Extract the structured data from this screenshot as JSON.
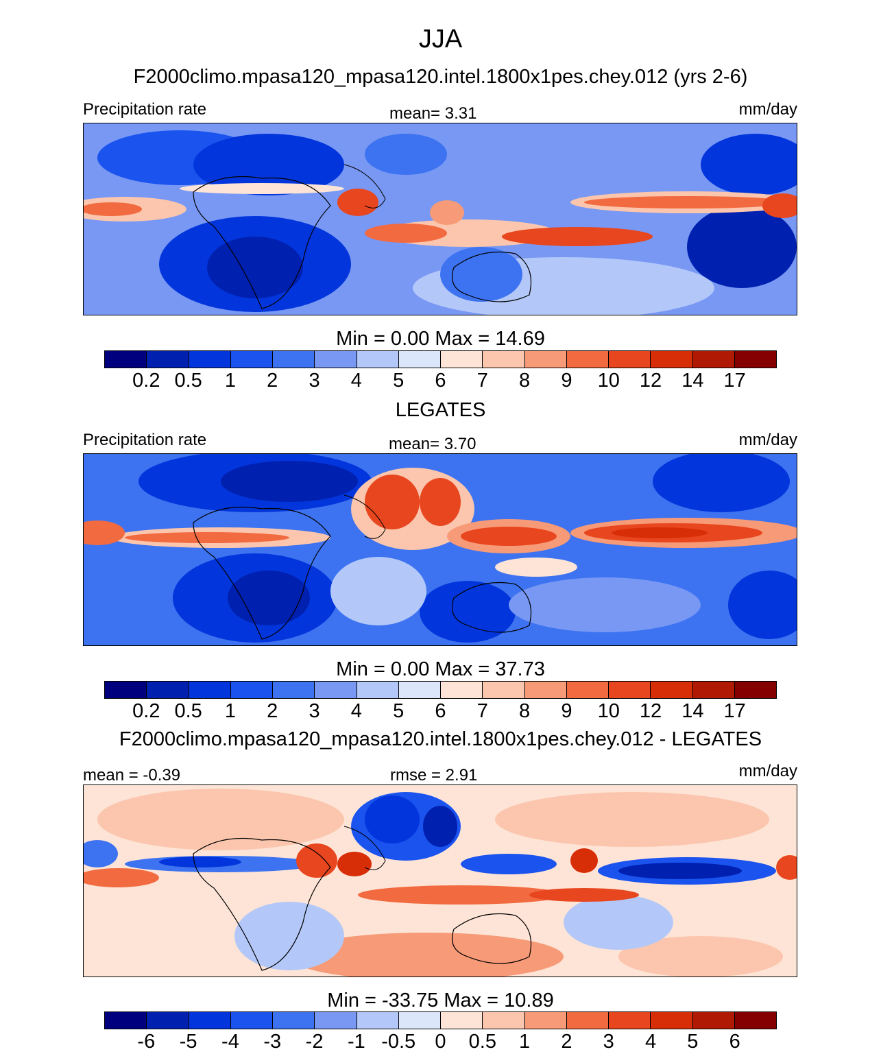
{
  "figure": {
    "season": "JJA",
    "units": "mm/day"
  },
  "panels": [
    {
      "title": "F2000climo.mpasa120_mpasa120.intel.1800x1pes.chey.012 (yrs 2-6)",
      "left_label": "Precipitation rate",
      "center_label": "mean=   3.31",
      "right_label": "mm/day",
      "minmax": "Min =   0.00 Max =  14.69"
    },
    {
      "title": "LEGATES",
      "left_label": "Precipitation rate",
      "center_label": "mean=   3.70",
      "right_label": "mm/day",
      "minmax": "Min =   0.00 Max =  37.73"
    },
    {
      "title": "F2000climo.mpasa120_mpasa120.intel.1800x1pes.chey.012 - LEGATES",
      "left_label": "mean =  -0.39",
      "center_label": "rmse =   2.91",
      "right_label": "mm/day",
      "minmax": "Min = -33.75 Max =  10.89"
    }
  ],
  "colorbars": {
    "abs_colors": [
      "#00007f",
      "#0020b0",
      "#0236dc",
      "#1a53ee",
      "#3d73f0",
      "#7898f4",
      "#b3c8f8",
      "#dbe6fb",
      "#fde4d6",
      "#fbc6ad",
      "#f79a77",
      "#f26a40",
      "#e8461e",
      "#d82e08",
      "#b01a04",
      "#850000"
    ],
    "abs_ticks": [
      "0.2",
      "0.5",
      "1",
      "2",
      "3",
      "4",
      "5",
      "6",
      "7",
      "8",
      "9",
      "10",
      "12",
      "14",
      "17"
    ],
    "diff_colors": [
      "#00007f",
      "#0020b0",
      "#0236dc",
      "#1a53ee",
      "#3d73f0",
      "#7898f4",
      "#b3c8f8",
      "#dbe6fb",
      "#fde4d6",
      "#fbc6ad",
      "#f79a77",
      "#f26a40",
      "#e8461e",
      "#d82e08",
      "#b01a04",
      "#850000"
    ],
    "diff_ticks": [
      "-6",
      "-5",
      "-4",
      "-3",
      "-2",
      "-1",
      "-0.5",
      "0",
      "0.5",
      "1",
      "2",
      "3",
      "4",
      "5",
      "6"
    ]
  }
}
